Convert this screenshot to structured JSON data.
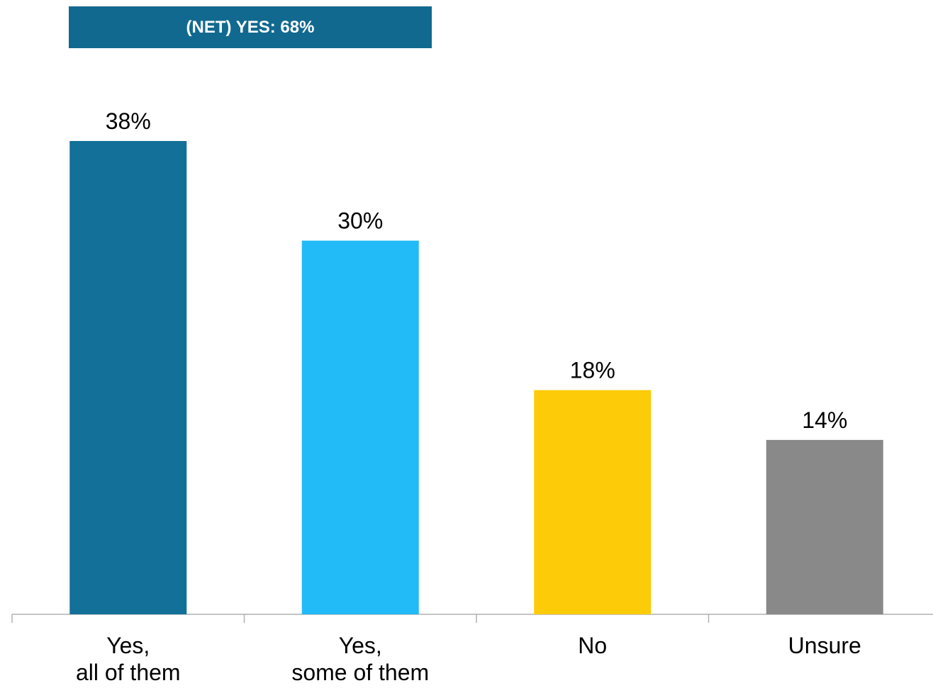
{
  "banner": {
    "text": "(NET) YES: 68%",
    "color": "#11698f"
  },
  "chart_data": {
    "type": "bar",
    "categories": [
      [
        "Yes,",
        "all of them"
      ],
      [
        "Yes,",
        "some of them"
      ],
      [
        "No"
      ],
      [
        "Unsure"
      ]
    ],
    "values": [
      38,
      30,
      18,
      14
    ],
    "value_labels": [
      "38%",
      "30%",
      "18%",
      "14%"
    ],
    "colors": [
      "#137098",
      "#22bbf8",
      "#fdcb07",
      "#898989"
    ],
    "title": "",
    "xlabel": "",
    "ylabel": "",
    "ylim": [
      0,
      38
    ],
    "grid": false,
    "legend": "none"
  }
}
